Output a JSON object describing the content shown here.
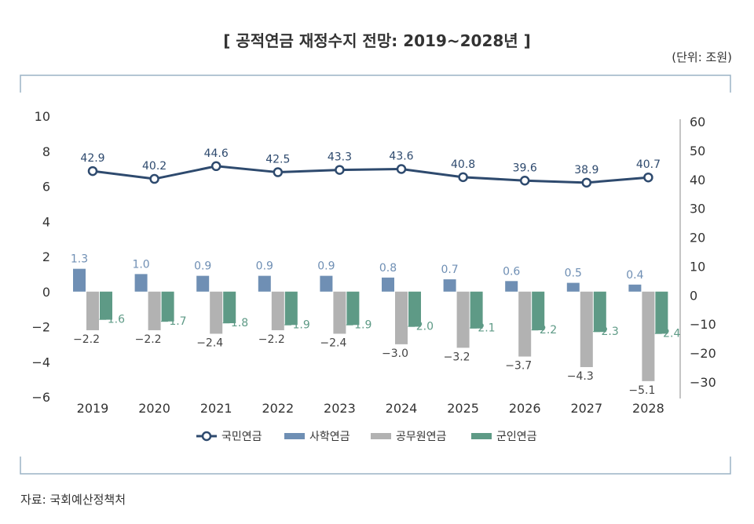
{
  "title": "[ 공적연금 재정수지 전망: 2019~2028년 ]",
  "unit": "(단위: 조원)",
  "source": "자료: 국회예산정책처",
  "chart_data": {
    "type": "bar",
    "categories": [
      "2019",
      "2020",
      "2021",
      "2022",
      "2023",
      "2024",
      "2025",
      "2026",
      "2027",
      "2028"
    ],
    "y_left": {
      "range": [
        -6,
        10
      ],
      "ticks": [
        "10",
        "8",
        "6",
        "4",
        "2",
        "0",
        "-2",
        "-4",
        "-6"
      ]
    },
    "y_right": {
      "range": [
        -30,
        60
      ],
      "ticks": [
        "60",
        "50",
        "40",
        "30",
        "20",
        "10",
        "0",
        "-10",
        "-20",
        "-30"
      ]
    },
    "series": [
      {
        "name": "국민연금",
        "kind": "line",
        "axis": "right",
        "color": "#2e4a6e",
        "values": [
          42.9,
          40.2,
          44.6,
          42.5,
          43.3,
          43.6,
          40.8,
          39.6,
          38.9,
          40.7
        ],
        "labels": [
          "42.9",
          "40.2",
          "44.6",
          "42.5",
          "43.3",
          "43.6",
          "40.8",
          "39.6",
          "38.9",
          "40.7"
        ]
      },
      {
        "name": "사학연금",
        "kind": "bar",
        "axis": "left",
        "color": "#6f8fb4",
        "values": [
          1.3,
          1.0,
          0.9,
          0.9,
          0.9,
          0.8,
          0.7,
          0.6,
          0.5,
          0.4
        ],
        "labels": [
          "1.3",
          "1.0",
          "0.9",
          "0.9",
          "0.9",
          "0.8",
          "0.7",
          "0.6",
          "0.5",
          "0.4"
        ]
      },
      {
        "name": "공무원연금",
        "kind": "bar",
        "axis": "left",
        "color": "#b2b2b2",
        "values": [
          -2.2,
          -2.2,
          -2.4,
          -2.2,
          -2.4,
          -3.0,
          -3.2,
          -3.7,
          -4.3,
          -5.1
        ],
        "labels": [
          "−2.2",
          "−2.2",
          "−2.4",
          "−2.2",
          "−2.4",
          "−3.0",
          "−3.2",
          "−3.7",
          "−4.3",
          "−5.1"
        ]
      },
      {
        "name": "군인연금",
        "kind": "bar",
        "axis": "left",
        "color": "#5e9a86",
        "values": [
          -1.6,
          -1.7,
          -1.8,
          -1.9,
          -1.9,
          -2.0,
          -2.1,
          -2.2,
          -2.3,
          -2.4
        ],
        "labels": [
          "−1.6",
          "−1.7",
          "−1.8",
          "−1.9",
          "−1.9",
          "−2.0",
          "−2.1",
          "−2.2",
          "−2.3",
          "−2.4"
        ]
      }
    ],
    "legend_position": "bottom",
    "grid": false
  }
}
